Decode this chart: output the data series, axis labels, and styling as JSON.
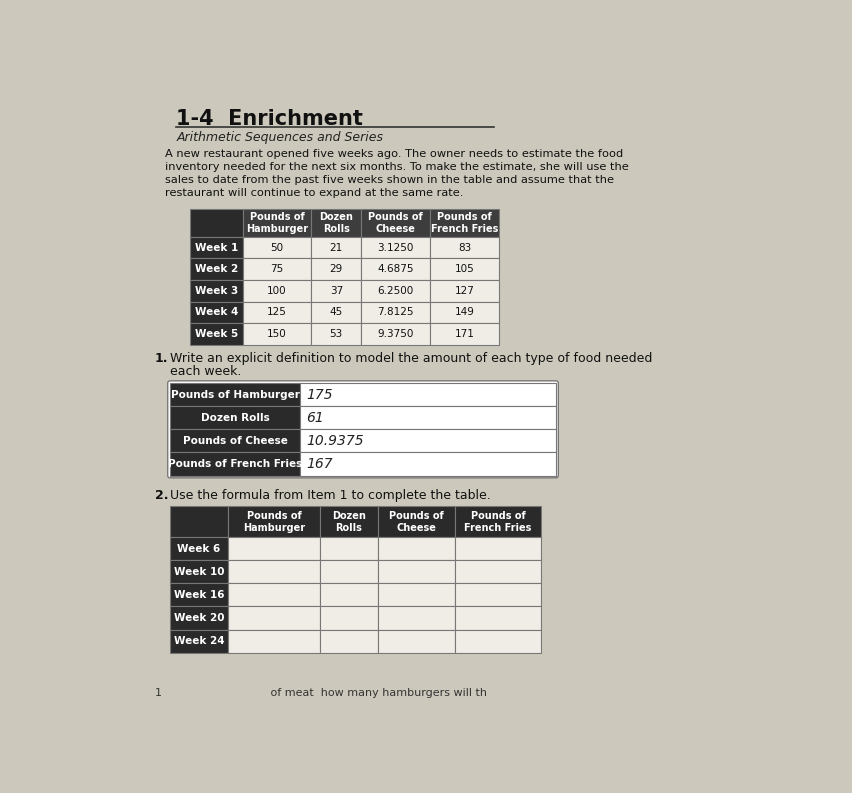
{
  "title": "1-4  Enrichment",
  "subtitle": "Arithmetic Sequences and Series",
  "paragraph1": "A new restaurant opened five weeks ago. The owner needs to estimate the food",
  "paragraph2": "inventory needed for the next six months. To make the estimate, she will use the",
  "paragraph3": "sales to date from the past five weeks shown in the table and assume that the",
  "paragraph4": "restaurant will continue to expand at the same rate.",
  "table1_col0_header": "",
  "table1_col_headers": [
    "Pounds of\nHamburger",
    "Dozen\nRolls",
    "Pounds of\nCheese",
    "Pounds of\nFrench Fries"
  ],
  "table1_rows": [
    [
      "Week 1",
      "50",
      "21",
      "3.1250",
      "83"
    ],
    [
      "Week 2",
      "75",
      "29",
      "4.6875",
      "105"
    ],
    [
      "Week 3",
      "100",
      "37",
      "6.2500",
      "127"
    ],
    [
      "Week 4",
      "125",
      "45",
      "7.8125",
      "149"
    ],
    [
      "Week 5",
      "150",
      "53",
      "9.3750",
      "171"
    ]
  ],
  "question1_num": "1.",
  "question1_text": "Write an explicit definition to model the amount of each type of food needed",
  "question1_text2": "each week.",
  "table2_labels": [
    "Pounds of Hamburger",
    "Dozen Rolls",
    "Pounds of Cheese",
    "Pounds of French Fries"
  ],
  "table2_answers": [
    "175",
    "61",
    "10.9375",
    "167"
  ],
  "question2_num": "2.",
  "question2_text": "Use the formula from Item 1 to complete the table.",
  "table3_col_headers": [
    "Pounds of\nHamburger",
    "Dozen\nRolls",
    "Pounds of\nCheese",
    "Pounds of\nFrench Fries"
  ],
  "table3_rows": [
    "Week 6",
    "Week 10",
    "Week 16",
    "Week 20",
    "Week 24"
  ],
  "footer": "1                               of meat  how many hamburgers will th",
  "dark_color": "#2a2a2a",
  "med_dark": "#3d3d3d",
  "light_cell": "#f0ede6",
  "bg_color": "#ccc9bc",
  "white": "#ffffff",
  "border": "#777777"
}
